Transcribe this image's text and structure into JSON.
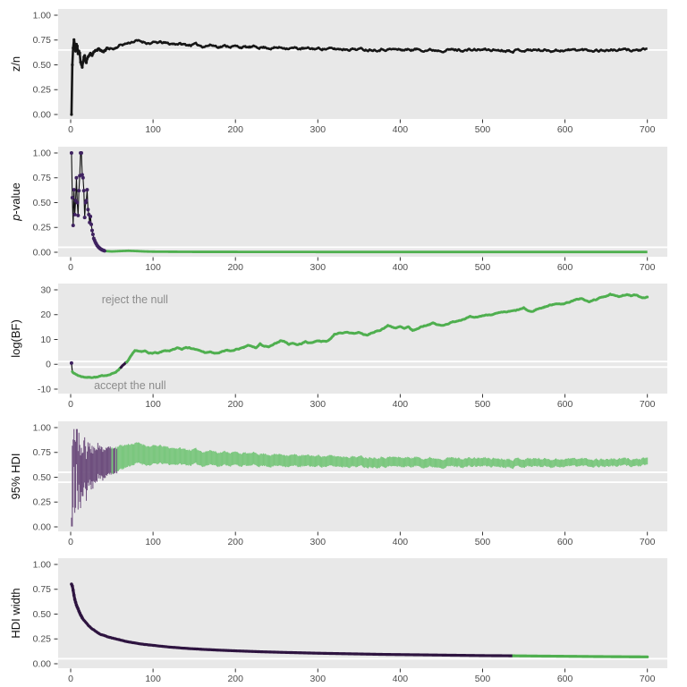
{
  "figure": {
    "background": "#ffffff",
    "panel_background": "#e8e8e8",
    "gridline_color": "#ffffff",
    "tick_label_color": "#4d4d4d",
    "tick_mark_color": "#333333",
    "axis_title_color": "#141414",
    "annotation_color": "#8c8c8c",
    "colors": {
      "black_line": "#161616",
      "purple_point": "#3f2260",
      "purple_dark_line": "#2e1440",
      "purple_band": "#6e4f7e",
      "green_line": "#4faf4f",
      "green_band": "#7bc77e"
    },
    "x_ticks": [
      0,
      100,
      200,
      300,
      400,
      500,
      600,
      700
    ],
    "xlim": [
      0,
      700
    ]
  },
  "chart_data": [
    {
      "id": "zn",
      "type": "line",
      "ylabel": "z/n",
      "scale": [
        0,
        1
      ],
      "y_ticks": [
        {
          "v": 1,
          "label": "1.00"
        },
        {
          "v": 0.75,
          "label": "0.75"
        },
        {
          "v": 0.5,
          "label": "0.50"
        },
        {
          "v": 0.25,
          "label": "0.25"
        },
        {
          "v": 0,
          "label": "0.00"
        }
      ],
      "hlines": [
        0.65
      ],
      "noise": 0.012,
      "point_markers_until": 45,
      "keypoints": [
        [
          1,
          0
        ],
        [
          2,
          0.5
        ],
        [
          3,
          0.67
        ],
        [
          4,
          0.75
        ],
        [
          5,
          0.7
        ],
        [
          6,
          0.63
        ],
        [
          7,
          0.71
        ],
        [
          8,
          0.69
        ],
        [
          9,
          0.61
        ],
        [
          10,
          0.64
        ],
        [
          11,
          0.62
        ],
        [
          12,
          0.52
        ],
        [
          13,
          0.5
        ],
        [
          14,
          0.47
        ],
        [
          15,
          0.52
        ],
        [
          16,
          0.58
        ],
        [
          17,
          0.6
        ],
        [
          18,
          0.55
        ],
        [
          19,
          0.53
        ],
        [
          20,
          0.57
        ],
        [
          22,
          0.6
        ],
        [
          24,
          0.62
        ],
        [
          26,
          0.59
        ],
        [
          28,
          0.62
        ],
        [
          30,
          0.64
        ],
        [
          33,
          0.66
        ],
        [
          36,
          0.65
        ],
        [
          40,
          0.63
        ],
        [
          44,
          0.66
        ],
        [
          48,
          0.67
        ],
        [
          52,
          0.66
        ],
        [
          56,
          0.68
        ],
        [
          60,
          0.7
        ],
        [
          65,
          0.71
        ],
        [
          70,
          0.72
        ],
        [
          75,
          0.735
        ],
        [
          80,
          0.74
        ],
        [
          85,
          0.735
        ],
        [
          90,
          0.73
        ],
        [
          95,
          0.72
        ],
        [
          100,
          0.72
        ],
        [
          110,
          0.725
        ],
        [
          120,
          0.71
        ],
        [
          130,
          0.715
        ],
        [
          140,
          0.7
        ],
        [
          150,
          0.705
        ],
        [
          160,
          0.69
        ],
        [
          170,
          0.7
        ],
        [
          180,
          0.685
        ],
        [
          190,
          0.69
        ],
        [
          200,
          0.685
        ],
        [
          215,
          0.675
        ],
        [
          230,
          0.68
        ],
        [
          245,
          0.67
        ],
        [
          260,
          0.675
        ],
        [
          275,
          0.665
        ],
        [
          290,
          0.66
        ],
        [
          305,
          0.665
        ],
        [
          320,
          0.658
        ],
        [
          340,
          0.662
        ],
        [
          360,
          0.655
        ],
        [
          380,
          0.66
        ],
        [
          400,
          0.652
        ],
        [
          420,
          0.655
        ],
        [
          440,
          0.65
        ],
        [
          460,
          0.653
        ],
        [
          480,
          0.648
        ],
        [
          500,
          0.652
        ],
        [
          530,
          0.648
        ],
        [
          560,
          0.65
        ],
        [
          590,
          0.647
        ],
        [
          620,
          0.65
        ],
        [
          650,
          0.648
        ],
        [
          675,
          0.65
        ],
        [
          700,
          0.649
        ]
      ]
    },
    {
      "id": "pvalue",
      "type": "line",
      "ylabel": "p-value",
      "ylabel_italic_prefix": "p",
      "ylabel_rest": "-value",
      "scale": [
        0,
        1
      ],
      "y_ticks": [
        {
          "v": 1,
          "label": "1.00"
        },
        {
          "v": 0.75,
          "label": "0.75"
        },
        {
          "v": 0.5,
          "label": "0.50"
        },
        {
          "v": 0.25,
          "label": "0.25"
        },
        {
          "v": 0,
          "label": "0.00"
        }
      ],
      "hlines": [
        0.05
      ],
      "purple_until": 41,
      "keypoints": [
        [
          1,
          1.0
        ],
        [
          2,
          0.55
        ],
        [
          3,
          0.27
        ],
        [
          4,
          0.63
        ],
        [
          5,
          0.38
        ],
        [
          6,
          0.52
        ],
        [
          7,
          0.75
        ],
        [
          8,
          0.5
        ],
        [
          9,
          0.37
        ],
        [
          10,
          0.62
        ],
        [
          11,
          0.77
        ],
        [
          12,
          1.0
        ],
        [
          13,
          1.0
        ],
        [
          14,
          0.78
        ],
        [
          15,
          0.75
        ],
        [
          16,
          0.62
        ],
        [
          17,
          0.35
        ],
        [
          18,
          0.5
        ],
        [
          19,
          0.52
        ],
        [
          20,
          0.63
        ],
        [
          21,
          0.43
        ],
        [
          22,
          0.38
        ],
        [
          23,
          0.3
        ],
        [
          24,
          0.36
        ],
        [
          25,
          0.28
        ],
        [
          26,
          0.22
        ],
        [
          27,
          0.18
        ],
        [
          28,
          0.14
        ],
        [
          29,
          0.12
        ],
        [
          30,
          0.1
        ],
        [
          32,
          0.07
        ],
        [
          34,
          0.05
        ],
        [
          36,
          0.035
        ],
        [
          38,
          0.025
        ],
        [
          40,
          0.018
        ],
        [
          42,
          0.012
        ],
        [
          50,
          0.008
        ],
        [
          60,
          0.012
        ],
        [
          70,
          0.015
        ],
        [
          80,
          0.012
        ],
        [
          90,
          0.008
        ],
        [
          100,
          0.006
        ],
        [
          150,
          0.004
        ],
        [
          300,
          0.003
        ],
        [
          700,
          0.003
        ]
      ]
    },
    {
      "id": "logbf",
      "type": "line",
      "ylabel": "log(BF)",
      "scale": [
        -10,
        30
      ],
      "y_ticks": [
        {
          "v": 30,
          "label": "30"
        },
        {
          "v": 20,
          "label": "20"
        },
        {
          "v": 10,
          "label": "10"
        },
        {
          "v": 0,
          "label": "0"
        },
        {
          "v": -10,
          "label": "-10"
        }
      ],
      "hlines": [
        1.1,
        -1.1
      ],
      "purple_when_abs_below": 1.1,
      "noise": 0.22,
      "first_point": [
        1,
        0.5
      ],
      "annotations": [
        {
          "text": "reject the null",
          "x": 78,
          "y": 26
        },
        {
          "text": "accept the null",
          "x": 72,
          "y": -8.5
        }
      ],
      "keypoints": [
        [
          1,
          0.5
        ],
        [
          2,
          -2.8
        ],
        [
          4,
          -3.6
        ],
        [
          6,
          -4.0
        ],
        [
          8,
          -4.3
        ],
        [
          10,
          -4.6
        ],
        [
          13,
          -4.9
        ],
        [
          16,
          -5.1
        ],
        [
          20,
          -5.2
        ],
        [
          24,
          -5.3
        ],
        [
          28,
          -5.1
        ],
        [
          32,
          -5.2
        ],
        [
          36,
          -4.9
        ],
        [
          40,
          -4.6
        ],
        [
          44,
          -4.3
        ],
        [
          48,
          -4.1
        ],
        [
          52,
          -3.6
        ],
        [
          55,
          -3.0
        ],
        [
          58,
          -2.2
        ],
        [
          60,
          -1.4
        ],
        [
          62,
          -0.8
        ],
        [
          64,
          -0.3
        ],
        [
          66,
          0.2
        ],
        [
          68,
          0.8
        ],
        [
          70,
          1.6
        ],
        [
          72,
          2.6
        ],
        [
          75,
          4.0
        ],
        [
          78,
          5.3
        ],
        [
          80,
          5.5
        ],
        [
          83,
          5.2
        ],
        [
          86,
          4.9
        ],
        [
          90,
          5.3
        ],
        [
          94,
          4.8
        ],
        [
          98,
          4.4
        ],
        [
          102,
          4.7
        ],
        [
          106,
          4.3
        ],
        [
          110,
          4.9
        ],
        [
          115,
          5.6
        ],
        [
          120,
          5.2
        ],
        [
          125,
          5.9
        ],
        [
          130,
          6.6
        ],
        [
          135,
          6.1
        ],
        [
          140,
          7.1
        ],
        [
          145,
          6.6
        ],
        [
          150,
          6.2
        ],
        [
          155,
          5.6
        ],
        [
          160,
          5.1
        ],
        [
          165,
          4.6
        ],
        [
          170,
          5.0
        ],
        [
          175,
          4.3
        ],
        [
          180,
          4.6
        ],
        [
          185,
          5.1
        ],
        [
          190,
          5.6
        ],
        [
          195,
          5.3
        ],
        [
          200,
          5.9
        ],
        [
          205,
          6.3
        ],
        [
          210,
          6.6
        ],
        [
          215,
          7.6
        ],
        [
          220,
          7.1
        ],
        [
          225,
          6.6
        ],
        [
          230,
          8.1
        ],
        [
          235,
          7.3
        ],
        [
          240,
          6.9
        ],
        [
          245,
          7.6
        ],
        [
          250,
          8.6
        ],
        [
          255,
          9.6
        ],
        [
          260,
          9.1
        ],
        [
          265,
          8.1
        ],
        [
          270,
          8.6
        ],
        [
          275,
          7.9
        ],
        [
          280,
          8.3
        ],
        [
          285,
          9.1
        ],
        [
          290,
          8.6
        ],
        [
          295,
          9.0
        ],
        [
          300,
          9.6
        ],
        [
          305,
          9.3
        ],
        [
          310,
          9.2
        ],
        [
          315,
          10.1
        ],
        [
          320,
          12.1
        ],
        [
          325,
          12.6
        ],
        [
          330,
          12.3
        ],
        [
          335,
          12.9
        ],
        [
          340,
          12.6
        ],
        [
          345,
          12.4
        ],
        [
          350,
          12.9
        ],
        [
          355,
          12.1
        ],
        [
          360,
          11.6
        ],
        [
          365,
          12.6
        ],
        [
          370,
          13.1
        ],
        [
          375,
          13.6
        ],
        [
          380,
          14.6
        ],
        [
          385,
          15.6
        ],
        [
          390,
          15.1
        ],
        [
          395,
          14.6
        ],
        [
          400,
          15.1
        ],
        [
          405,
          14.3
        ],
        [
          410,
          14.9
        ],
        [
          415,
          13.6
        ],
        [
          420,
          14.1
        ],
        [
          425,
          15.1
        ],
        [
          430,
          15.6
        ],
        [
          435,
          16.1
        ],
        [
          440,
          16.6
        ],
        [
          445,
          15.9
        ],
        [
          450,
          15.6
        ],
        [
          455,
          16.1
        ],
        [
          460,
          16.6
        ],
        [
          465,
          17.1
        ],
        [
          470,
          17.6
        ],
        [
          475,
          18.1
        ],
        [
          480,
          18.6
        ],
        [
          485,
          19.1
        ],
        [
          490,
          18.6
        ],
        [
          495,
          19.1
        ],
        [
          500,
          19.6
        ],
        [
          510,
          20.1
        ],
        [
          520,
          20.6
        ],
        [
          530,
          21.1
        ],
        [
          540,
          21.6
        ],
        [
          545,
          22.1
        ],
        [
          550,
          22.6
        ],
        [
          555,
          21.6
        ],
        [
          560,
          21.1
        ],
        [
          565,
          22.1
        ],
        [
          570,
          22.6
        ],
        [
          575,
          23.1
        ],
        [
          580,
          23.6
        ],
        [
          585,
          24.1
        ],
        [
          590,
          24.6
        ],
        [
          595,
          24.1
        ],
        [
          600,
          24.6
        ],
        [
          605,
          25.1
        ],
        [
          610,
          25.6
        ],
        [
          615,
          26.1
        ],
        [
          620,
          26.6
        ],
        [
          625,
          25.6
        ],
        [
          630,
          25.1
        ],
        [
          635,
          25.9
        ],
        [
          640,
          26.3
        ],
        [
          645,
          27.1
        ],
        [
          650,
          27.6
        ],
        [
          655,
          28.1
        ],
        [
          660,
          27.6
        ],
        [
          665,
          27.1
        ],
        [
          670,
          27.9
        ],
        [
          675,
          28.1
        ],
        [
          680,
          27.6
        ],
        [
          685,
          27.9
        ],
        [
          690,
          27.3
        ],
        [
          695,
          26.9
        ],
        [
          700,
          27.1
        ]
      ]
    },
    {
      "id": "hdi",
      "type": "interval",
      "ylabel": "95% HDI",
      "scale": [
        0,
        1
      ],
      "y_ticks": [
        {
          "v": 1,
          "label": "1.00"
        },
        {
          "v": 0.75,
          "label": "0.75"
        },
        {
          "v": 0.5,
          "label": "0.50"
        },
        {
          "v": 0.25,
          "label": "0.25"
        },
        {
          "v": 0,
          "label": "0.00"
        }
      ],
      "hlines": [
        0.55,
        0.45
      ],
      "rope": [
        0.45,
        0.55
      ],
      "green_slivers": [
        50,
        51
      ],
      "center_source": "zn",
      "width_source": "hdiwidth"
    },
    {
      "id": "hdiwidth",
      "type": "line",
      "ylabel": "HDI width",
      "scale": [
        0,
        1
      ],
      "y_ticks": [
        {
          "v": 1,
          "label": "1.00"
        },
        {
          "v": 0.75,
          "label": "0.75"
        },
        {
          "v": 0.5,
          "label": "0.50"
        },
        {
          "v": 0.25,
          "label": "0.25"
        },
        {
          "v": 0,
          "label": "0.00"
        }
      ],
      "hlines": [
        0.05
      ],
      "green_from": 536,
      "point_markers_until": 14,
      "keypoints": [
        [
          1,
          0.8
        ],
        [
          2,
          0.78
        ],
        [
          3,
          0.74
        ],
        [
          4,
          0.69
        ],
        [
          5,
          0.65
        ],
        [
          6,
          0.62
        ],
        [
          7,
          0.59
        ],
        [
          8,
          0.57
        ],
        [
          10,
          0.53
        ],
        [
          12,
          0.49
        ],
        [
          15,
          0.45
        ],
        [
          18,
          0.42
        ],
        [
          21,
          0.39
        ],
        [
          25,
          0.36
        ],
        [
          30,
          0.33
        ],
        [
          35,
          0.3
        ],
        [
          40,
          0.285
        ],
        [
          45,
          0.27
        ],
        [
          50,
          0.26
        ],
        [
          60,
          0.24
        ],
        [
          70,
          0.22
        ],
        [
          80,
          0.205
        ],
        [
          90,
          0.195
        ],
        [
          100,
          0.185
        ],
        [
          120,
          0.168
        ],
        [
          140,
          0.155
        ],
        [
          160,
          0.145
        ],
        [
          180,
          0.137
        ],
        [
          200,
          0.13
        ],
        [
          230,
          0.121
        ],
        [
          260,
          0.114
        ],
        [
          300,
          0.106
        ],
        [
          340,
          0.1
        ],
        [
          380,
          0.094
        ],
        [
          420,
          0.09
        ],
        [
          460,
          0.086
        ],
        [
          500,
          0.082
        ],
        [
          535,
          0.08
        ],
        [
          570,
          0.077
        ],
        [
          600,
          0.075
        ],
        [
          640,
          0.072
        ],
        [
          700,
          0.069
        ]
      ]
    }
  ]
}
